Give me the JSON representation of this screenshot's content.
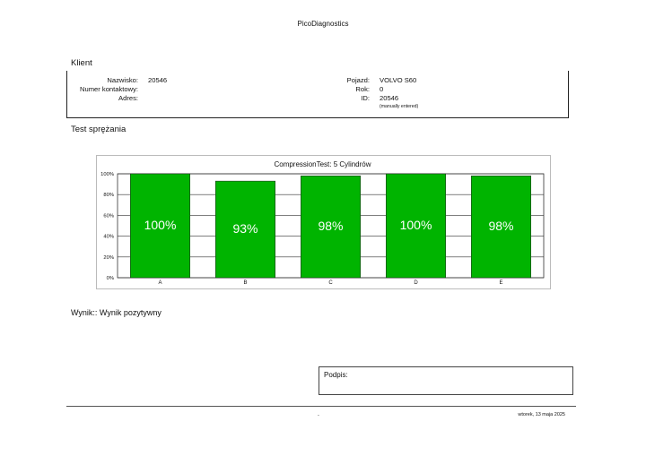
{
  "header": {
    "title": "PicoDiagnostics"
  },
  "client_section": {
    "title": "Klient",
    "fields_left": [
      {
        "label": "Nazwisko:",
        "value": "20546"
      },
      {
        "label": "Numer kontaktowy:",
        "value": ""
      },
      {
        "label": "Adres:",
        "value": ""
      }
    ],
    "fields_right": [
      {
        "label": "Pojazd:",
        "value": "VOLVO S60"
      },
      {
        "label": "Rok:",
        "value": "0"
      },
      {
        "label": "ID:",
        "value": "20546"
      }
    ],
    "id_note": "(manually entered)"
  },
  "test_section": {
    "title": "Test sprężania"
  },
  "chart_data": {
    "type": "bar",
    "title": "CompressionTest: 5 Cylindrów",
    "categories": [
      "A",
      "B",
      "C",
      "D",
      "E"
    ],
    "values": [
      100,
      93,
      98,
      100,
      98
    ],
    "value_labels": [
      "100%",
      "93%",
      "98%",
      "100%",
      "98%"
    ],
    "y_ticks": [
      "0%",
      "20%",
      "40%",
      "60%",
      "80%",
      "100%"
    ],
    "ylim": [
      0,
      100
    ],
    "grid": true,
    "bar_color": "#00b400",
    "label_color": "#ffffff"
  },
  "result": {
    "text": "Wynik:: Wynik pozytywny"
  },
  "signature": {
    "label": "Podpis:"
  },
  "footer": {
    "center": "-",
    "date": "wtorek, 13 maja 2025"
  }
}
